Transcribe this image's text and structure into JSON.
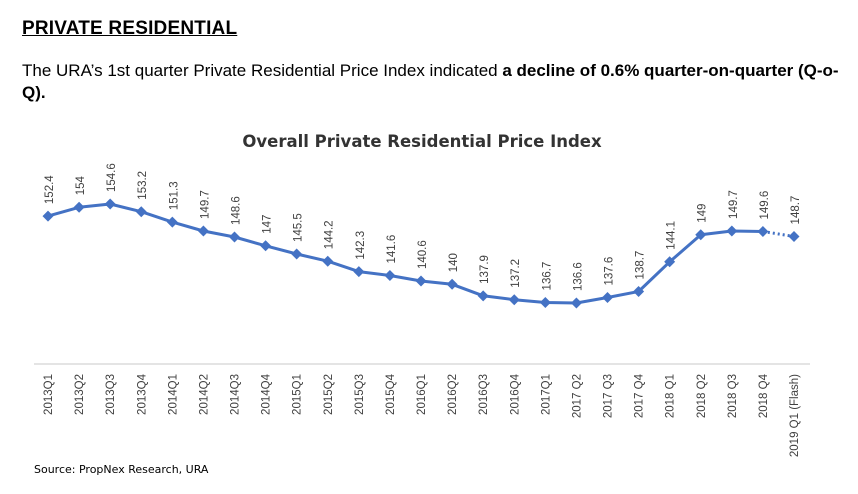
{
  "page": {
    "heading": "PRIVATE RESIDENTIAL",
    "intro_normal": "The URA’s 1st quarter Private Residential Price Index indicated ",
    "intro_bold": "a decline of 0.6% quarter-on-quarter (Q-o-Q).",
    "source": "Source: PropNex Research, URA"
  },
  "chart_data": {
    "type": "line",
    "title": "Overall Private Residential Price Index",
    "xlabel": "",
    "ylabel": "",
    "categories": [
      "2013Q1",
      "2013Q2",
      "2013Q3",
      "2013Q4",
      "2014Q1",
      "2014Q2",
      "2014Q3",
      "2014Q4",
      "2015Q1",
      "2015Q2",
      "2015Q3",
      "2015Q4",
      "2016Q1",
      "2016Q2",
      "2016Q3",
      "2016Q4",
      "2017Q1",
      "2017 Q2",
      "2017 Q3",
      "2017 Q4",
      "2018 Q1",
      "2018 Q2",
      "2018 Q3",
      "2018 Q4",
      "2019 Q1 (Flash)"
    ],
    "series": [
      {
        "values": [
          152.4,
          154,
          154.6,
          153.2,
          151.3,
          149.7,
          148.6,
          147,
          145.5,
          144.2,
          142.3,
          141.6,
          140.6,
          140,
          137.9,
          137.2,
          136.7,
          136.6,
          137.6,
          138.7,
          144.1,
          149,
          149.7,
          149.6,
          148.7
        ],
        "color": "#4472C4",
        "last_segment_style": "dotted"
      }
    ],
    "ylim": [
      125,
      160
    ],
    "grid": false,
    "legend": "none",
    "data_labels": true
  }
}
